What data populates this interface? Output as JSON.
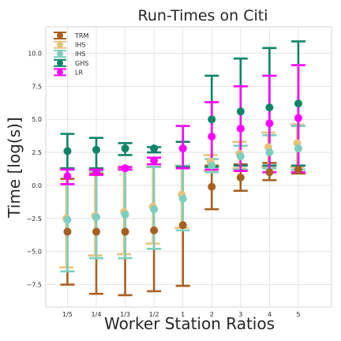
{
  "chart_data": {
    "type": "errorbar",
    "title": "Run-Times on Citi",
    "xlabel": "Worker Station Ratios",
    "ylabel": "Time [log(s)]",
    "categories": [
      "1/5",
      "1/4",
      "1/3",
      "1/2",
      "1",
      "2",
      "3",
      "4",
      "5"
    ],
    "ylim": [
      -9.2,
      12.0
    ],
    "yticks": [
      -7.5,
      -5.0,
      -2.5,
      0.0,
      2.5,
      5.0,
      7.5,
      10.0
    ],
    "ytick_labels": [
      "−7.5",
      "−5.0",
      "−2.5",
      "0.0",
      "2.5",
      "5.0",
      "7.5",
      "10.0"
    ],
    "grid": true,
    "legend_position": "top-left",
    "series": [
      {
        "name": "TRM",
        "color": "#a8601e",
        "offset": 0.0,
        "values": [
          -3.5,
          -3.5,
          -3.5,
          -3.4,
          -3.0,
          -0.1,
          0.6,
          1.0,
          1.2
        ],
        "lower": [
          -7.5,
          -8.2,
          -8.3,
          -8.0,
          -7.6,
          -1.8,
          -0.4,
          0.4,
          0.9
        ],
        "upper": [
          0.5,
          0.9,
          1.2,
          1.4,
          1.4,
          1.5,
          1.6,
          1.7,
          1.5
        ]
      },
      {
        "name": "IHS",
        "color": "#e6c37a",
        "offset": -0.04,
        "values": [
          -2.5,
          -2.3,
          -2.0,
          -1.6,
          -0.7,
          1.8,
          2.4,
          2.9,
          3.2
        ],
        "lower": [
          -6.2,
          -5.3,
          -5.2,
          -4.4,
          -3.2,
          1.1,
          1.3,
          1.4,
          1.4
        ],
        "upper": [
          1.3,
          1.2,
          1.3,
          1.4,
          1.5,
          2.3,
          3.3,
          4.0,
          4.6
        ]
      },
      {
        "name": "IHS",
        "color": "#7ccfc0",
        "offset": 0.0,
        "values": [
          -2.6,
          -2.4,
          -2.2,
          -1.8,
          -1.0,
          1.5,
          2.2,
          2.5,
          2.8
        ],
        "lower": [
          -6.5,
          -5.5,
          -5.5,
          -4.8,
          -3.4,
          1.0,
          1.2,
          1.3,
          1.2
        ],
        "upper": [
          1.2,
          1.1,
          1.2,
          1.4,
          1.5,
          2.0,
          3.0,
          3.8,
          4.5
        ]
      },
      {
        "name": "GHS",
        "color": "#0e8468",
        "offset": 0.0,
        "values": [
          2.6,
          2.7,
          2.8,
          2.8,
          2.8,
          5.0,
          5.6,
          5.9,
          6.2
        ],
        "lower": [
          1.3,
          1.3,
          2.3,
          2.5,
          1.4,
          1.4,
          1.5,
          1.5,
          1.5
        ],
        "upper": [
          3.9,
          3.6,
          3.2,
          2.9,
          3.3,
          8.3,
          9.6,
          10.4,
          10.9
        ]
      },
      {
        "name": "LR",
        "color": "#ff00ff",
        "offset": 0.0,
        "values": [
          0.7,
          1.0,
          1.3,
          1.9,
          2.8,
          3.7,
          4.3,
          4.7,
          5.1
        ],
        "lower": [
          0.1,
          0.8,
          1.2,
          1.6,
          1.3,
          1.2,
          1.1,
          1.0,
          1.0
        ],
        "upper": [
          1.2,
          1.2,
          1.4,
          2.1,
          4.5,
          6.3,
          7.5,
          8.3,
          9.1
        ]
      }
    ]
  }
}
